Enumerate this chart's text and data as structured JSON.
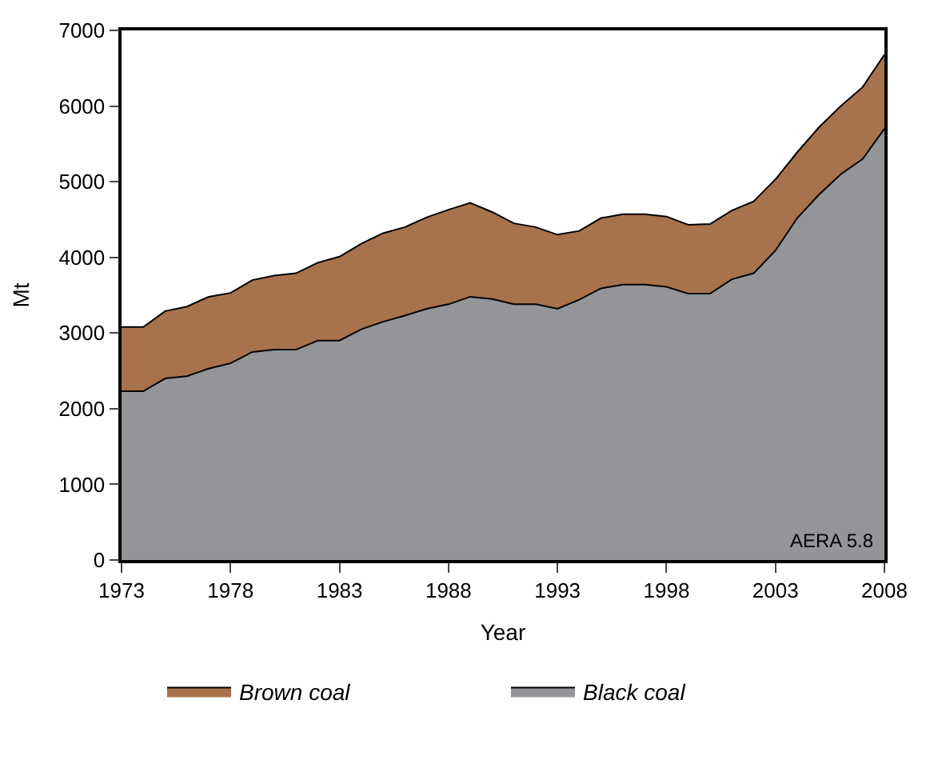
{
  "chart_data": {
    "type": "area",
    "stacked": true,
    "xlabel": "Year",
    "ylabel": "Mt",
    "x": [
      1973,
      1974,
      1975,
      1976,
      1977,
      1978,
      1979,
      1980,
      1981,
      1982,
      1983,
      1984,
      1985,
      1986,
      1987,
      1988,
      1989,
      1990,
      1991,
      1992,
      1993,
      1994,
      1995,
      1996,
      1997,
      1998,
      1999,
      2000,
      2001,
      2002,
      2003,
      2004,
      2005,
      2006,
      2007,
      2008
    ],
    "series": [
      {
        "name": "Black coal",
        "color": "#939598",
        "values": [
          2230,
          2230,
          2400,
          2430,
          2530,
          2600,
          2750,
          2780,
          2780,
          2900,
          2900,
          3050,
          3150,
          3230,
          3320,
          3380,
          3480,
          3450,
          3380,
          3380,
          3320,
          3440,
          3590,
          3640,
          3640,
          3610,
          3520,
          3520,
          3710,
          3790,
          4090,
          4520,
          4830,
          5100,
          5300,
          5700
        ]
      },
      {
        "name": "Brown coal",
        "color": "#a8724c",
        "values": [
          850,
          850,
          890,
          920,
          950,
          930,
          950,
          980,
          1010,
          1030,
          1110,
          1130,
          1170,
          1170,
          1210,
          1250,
          1240,
          1150,
          1070,
          1020,
          980,
          910,
          930,
          930,
          930,
          930,
          910,
          920,
          910,
          950,
          940,
          870,
          890,
          900,
          950,
          980
        ]
      }
    ],
    "xlim": [
      1973,
      2008
    ],
    "xticks": [
      1973,
      1978,
      1983,
      1988,
      1993,
      1998,
      2003,
      2008
    ],
    "ylim": [
      0,
      7000
    ],
    "yticks": [
      0,
      1000,
      2000,
      3000,
      4000,
      5000,
      6000,
      7000
    ],
    "legend": "bottom",
    "annotations": [
      "AERA 5.8"
    ]
  }
}
